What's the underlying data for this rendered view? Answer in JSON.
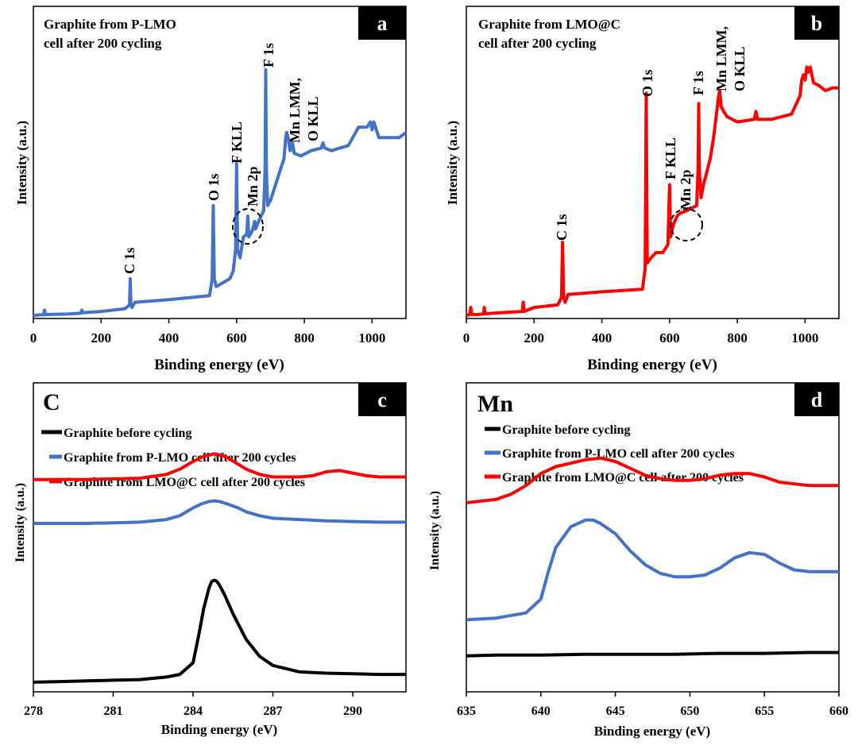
{
  "panel_a": {
    "label": "a",
    "title_lines": [
      "Graphite from P-LMO",
      "cell after 200 cycling"
    ],
    "xlabel": "Binding energy (eV)",
    "ylabel": "Intensity (a.u.)",
    "annotations": {
      "c1s": "C 1s",
      "o1s": "O 1s",
      "fkll": "F KLL",
      "mn2p": "Mn 2p",
      "f1s": "F 1s",
      "mnlmm": "Mn LMM,",
      "okll": "O KLL"
    }
  },
  "panel_b": {
    "label": "b",
    "title_lines": [
      "Graphite from LMO@C",
      "cell after 200 cycling"
    ],
    "xlabel": "Binding energy (eV)",
    "ylabel": "Intensity (a.u.)",
    "annotations": {
      "c1s": "C 1s",
      "o1s": "O 1s",
      "fkll": "F KLL",
      "mn2p": "Mn 2p",
      "f1s": "F 1s",
      "mnlmm": "Mn LMM,",
      "okll": "O KLL"
    }
  },
  "panel_c": {
    "label": "c",
    "element": "C",
    "xlabel": "Binding energy (eV)",
    "ylabel": "Intensity (a.u.)"
  },
  "panel_d": {
    "label": "d",
    "element": "Mn",
    "xlabel": "Binding energy (eV)",
    "ylabel": "Intensity (a.u.)"
  },
  "chart_data": [
    {
      "type": "line",
      "panel": "a",
      "xlim": [
        0,
        1100
      ],
      "xticks": [
        0,
        200,
        400,
        600,
        800,
        1000
      ],
      "series": [
        {
          "color": "#4472c4",
          "x": [
            0,
            30,
            33,
            36,
            100,
            140,
            143,
            146,
            200,
            270,
            284,
            286,
            288,
            291,
            300,
            400,
            520,
            528,
            531,
            534,
            540,
            580,
            590,
            597,
            600,
            603,
            610,
            620,
            630,
            633,
            636,
            645,
            650,
            653,
            656,
            665,
            680,
            684,
            686,
            688,
            692,
            700,
            720,
            730,
            740,
            745,
            748,
            752,
            758,
            765,
            770,
            790,
            820,
            850,
            855,
            860,
            880,
            930,
            960,
            985,
            995,
            1000,
            1005,
            1010,
            1020,
            1050,
            1080,
            1100
          ],
          "y": [
            0,
            0.2,
            2,
            0.3,
            0.5,
            0.8,
            2,
            1,
            1.5,
            2.5,
            4,
            14,
            4,
            3,
            5,
            6,
            7.5,
            14,
            42,
            14,
            11,
            14,
            17,
            25,
            58,
            25,
            22,
            30,
            31,
            38,
            30,
            32,
            34,
            36,
            33,
            36,
            40,
            55,
            94,
            55,
            42,
            44,
            52,
            56,
            60,
            68,
            70,
            68,
            63,
            66,
            62,
            61,
            63,
            64,
            66,
            64,
            63,
            65,
            72,
            72,
            74,
            71,
            74,
            72,
            68,
            68,
            68,
            70
          ]
        }
      ]
    },
    {
      "type": "line",
      "panel": "b",
      "xlim": [
        0,
        1100
      ],
      "xticks": [
        0,
        200,
        400,
        600,
        800,
        1000
      ],
      "series": [
        {
          "color": "#ff0000",
          "x": [
            0,
            10,
            13,
            16,
            30,
            50,
            53,
            56,
            100,
            165,
            168,
            171,
            200,
            270,
            281,
            284,
            287,
            292,
            300,
            400,
            520,
            528,
            531,
            534,
            545,
            560,
            580,
            595,
            600,
            603,
            612,
            622,
            630,
            650,
            680,
            684,
            686,
            688,
            693,
            700,
            720,
            730,
            745,
            748,
            752,
            760,
            770,
            800,
            850,
            855,
            860,
            900,
            960,
            985,
            990,
            995,
            1000,
            1005,
            1010,
            1015,
            1025,
            1040,
            1060,
            1080,
            1100
          ],
          "y": [
            0,
            0.3,
            3,
            0.3,
            0.3,
            0.5,
            3,
            0.6,
            1,
            1.5,
            5,
            1.5,
            3,
            4,
            7,
            28,
            7,
            5,
            8,
            9,
            10,
            18,
            85,
            20,
            22,
            24,
            24,
            27,
            50,
            30,
            35,
            38,
            39,
            40,
            42,
            55,
            81,
            55,
            45,
            50,
            60,
            68,
            84,
            86,
            80,
            78,
            76,
            74,
            75,
            78,
            75,
            75,
            77,
            84,
            90,
            92,
            90,
            95,
            93,
            95,
            89,
            88,
            86,
            87,
            87
          ]
        }
      ]
    },
    {
      "type": "line",
      "panel": "c",
      "xlim": [
        278,
        292
      ],
      "xticks": [
        278,
        281,
        284,
        287,
        290
      ],
      "legend": [
        "Graphite before cycling",
        "Graphite from P-LMO cell after 200 cycles",
        "Graphite from LMO@C cell after 200 cycles"
      ],
      "series": [
        {
          "name": "Graphite before cycling",
          "color": "#000000",
          "x": [
            278,
            279,
            280,
            281,
            282,
            283,
            283.5,
            284,
            284.2,
            284.4,
            284.6,
            284.7,
            284.8,
            284.9,
            285.0,
            285.2,
            285.5,
            286,
            286.5,
            287,
            288,
            289,
            290,
            291,
            292
          ],
          "y": [
            5,
            5.5,
            6,
            6.5,
            7,
            9,
            11,
            20,
            40,
            62,
            78,
            83,
            84,
            83,
            80,
            72,
            58,
            38,
            25,
            18,
            13,
            12,
            11.5,
            11,
            11
          ]
        },
        {
          "name": "Graphite from P-LMO cell after 200 cycles",
          "color": "#4472c4",
          "x": [
            278,
            279,
            280,
            281,
            282,
            283,
            283.5,
            284,
            284.3,
            284.6,
            284.8,
            285,
            285.3,
            285.7,
            286,
            286.5,
            287,
            288,
            289,
            290,
            291,
            292
          ],
          "y": [
            128,
            128,
            128,
            128.5,
            129,
            131,
            134,
            140,
            143,
            145,
            145.5,
            145,
            143,
            140,
            137,
            134,
            132,
            131,
            130,
            129.5,
            129,
            129
          ]
        },
        {
          "name": "Graphite from LMO@C cell after 200 cycles",
          "color": "#ff0000",
          "x": [
            278,
            279,
            280,
            281,
            282,
            283,
            283.5,
            284,
            284.4,
            284.8,
            285.2,
            285.6,
            286,
            286.5,
            287,
            288,
            288.5,
            289,
            289.5,
            290,
            290.5,
            291,
            292
          ],
          "y": [
            162,
            162,
            162,
            162.5,
            163,
            166,
            170,
            176,
            180,
            182,
            180,
            175,
            170,
            166,
            164,
            164,
            165,
            168,
            169,
            167,
            165,
            164,
            164
          ]
        }
      ]
    },
    {
      "type": "line",
      "panel": "d",
      "xlim": [
        635,
        660
      ],
      "xticks": [
        635,
        640,
        645,
        650,
        655,
        660
      ],
      "legend": [
        "Graphite before cycling",
        "Graphite from P-LMO cell after 200 cycles",
        "Graphite from LMO@C cell after 200 cycles"
      ],
      "series": [
        {
          "name": "Graphite before cycling",
          "color": "#000000",
          "x": [
            635,
            637,
            640,
            643,
            646,
            649,
            652,
            655,
            658,
            660
          ],
          "y": [
            19,
            19.5,
            19.5,
            20,
            20,
            20,
            20.5,
            20.5,
            21,
            21
          ]
        },
        {
          "name": "Graphite from P-LMO cell after 200 cycles",
          "color": "#4472c4",
          "x": [
            635,
            637,
            639,
            640,
            640.5,
            641,
            642,
            643,
            643.5,
            644,
            645,
            646,
            647,
            648,
            649,
            650,
            651,
            652,
            653,
            654,
            655,
            656,
            657,
            658,
            660
          ],
          "y": [
            40,
            41,
            44,
            52,
            68,
            82,
            94,
            98,
            98,
            96,
            90,
            80,
            72,
            67,
            65,
            65,
            66,
            70,
            76,
            79,
            78,
            73,
            69,
            68,
            68
          ]
        },
        {
          "name": "Graphite from LMO@C cell after 200 cycles",
          "color": "#ff0000",
          "x": [
            635,
            636,
            637,
            638,
            639,
            640,
            641,
            642,
            643,
            644,
            645,
            646,
            647,
            648,
            649,
            650,
            651,
            652,
            653,
            654,
            655,
            656,
            657,
            658,
            660
          ],
          "y": [
            108,
            109,
            110,
            113,
            118,
            125,
            129,
            131,
            133,
            134,
            132,
            128,
            124,
            122,
            121,
            121,
            122,
            124,
            125,
            125,
            123,
            120,
            119,
            118,
            118
          ]
        }
      ]
    }
  ]
}
